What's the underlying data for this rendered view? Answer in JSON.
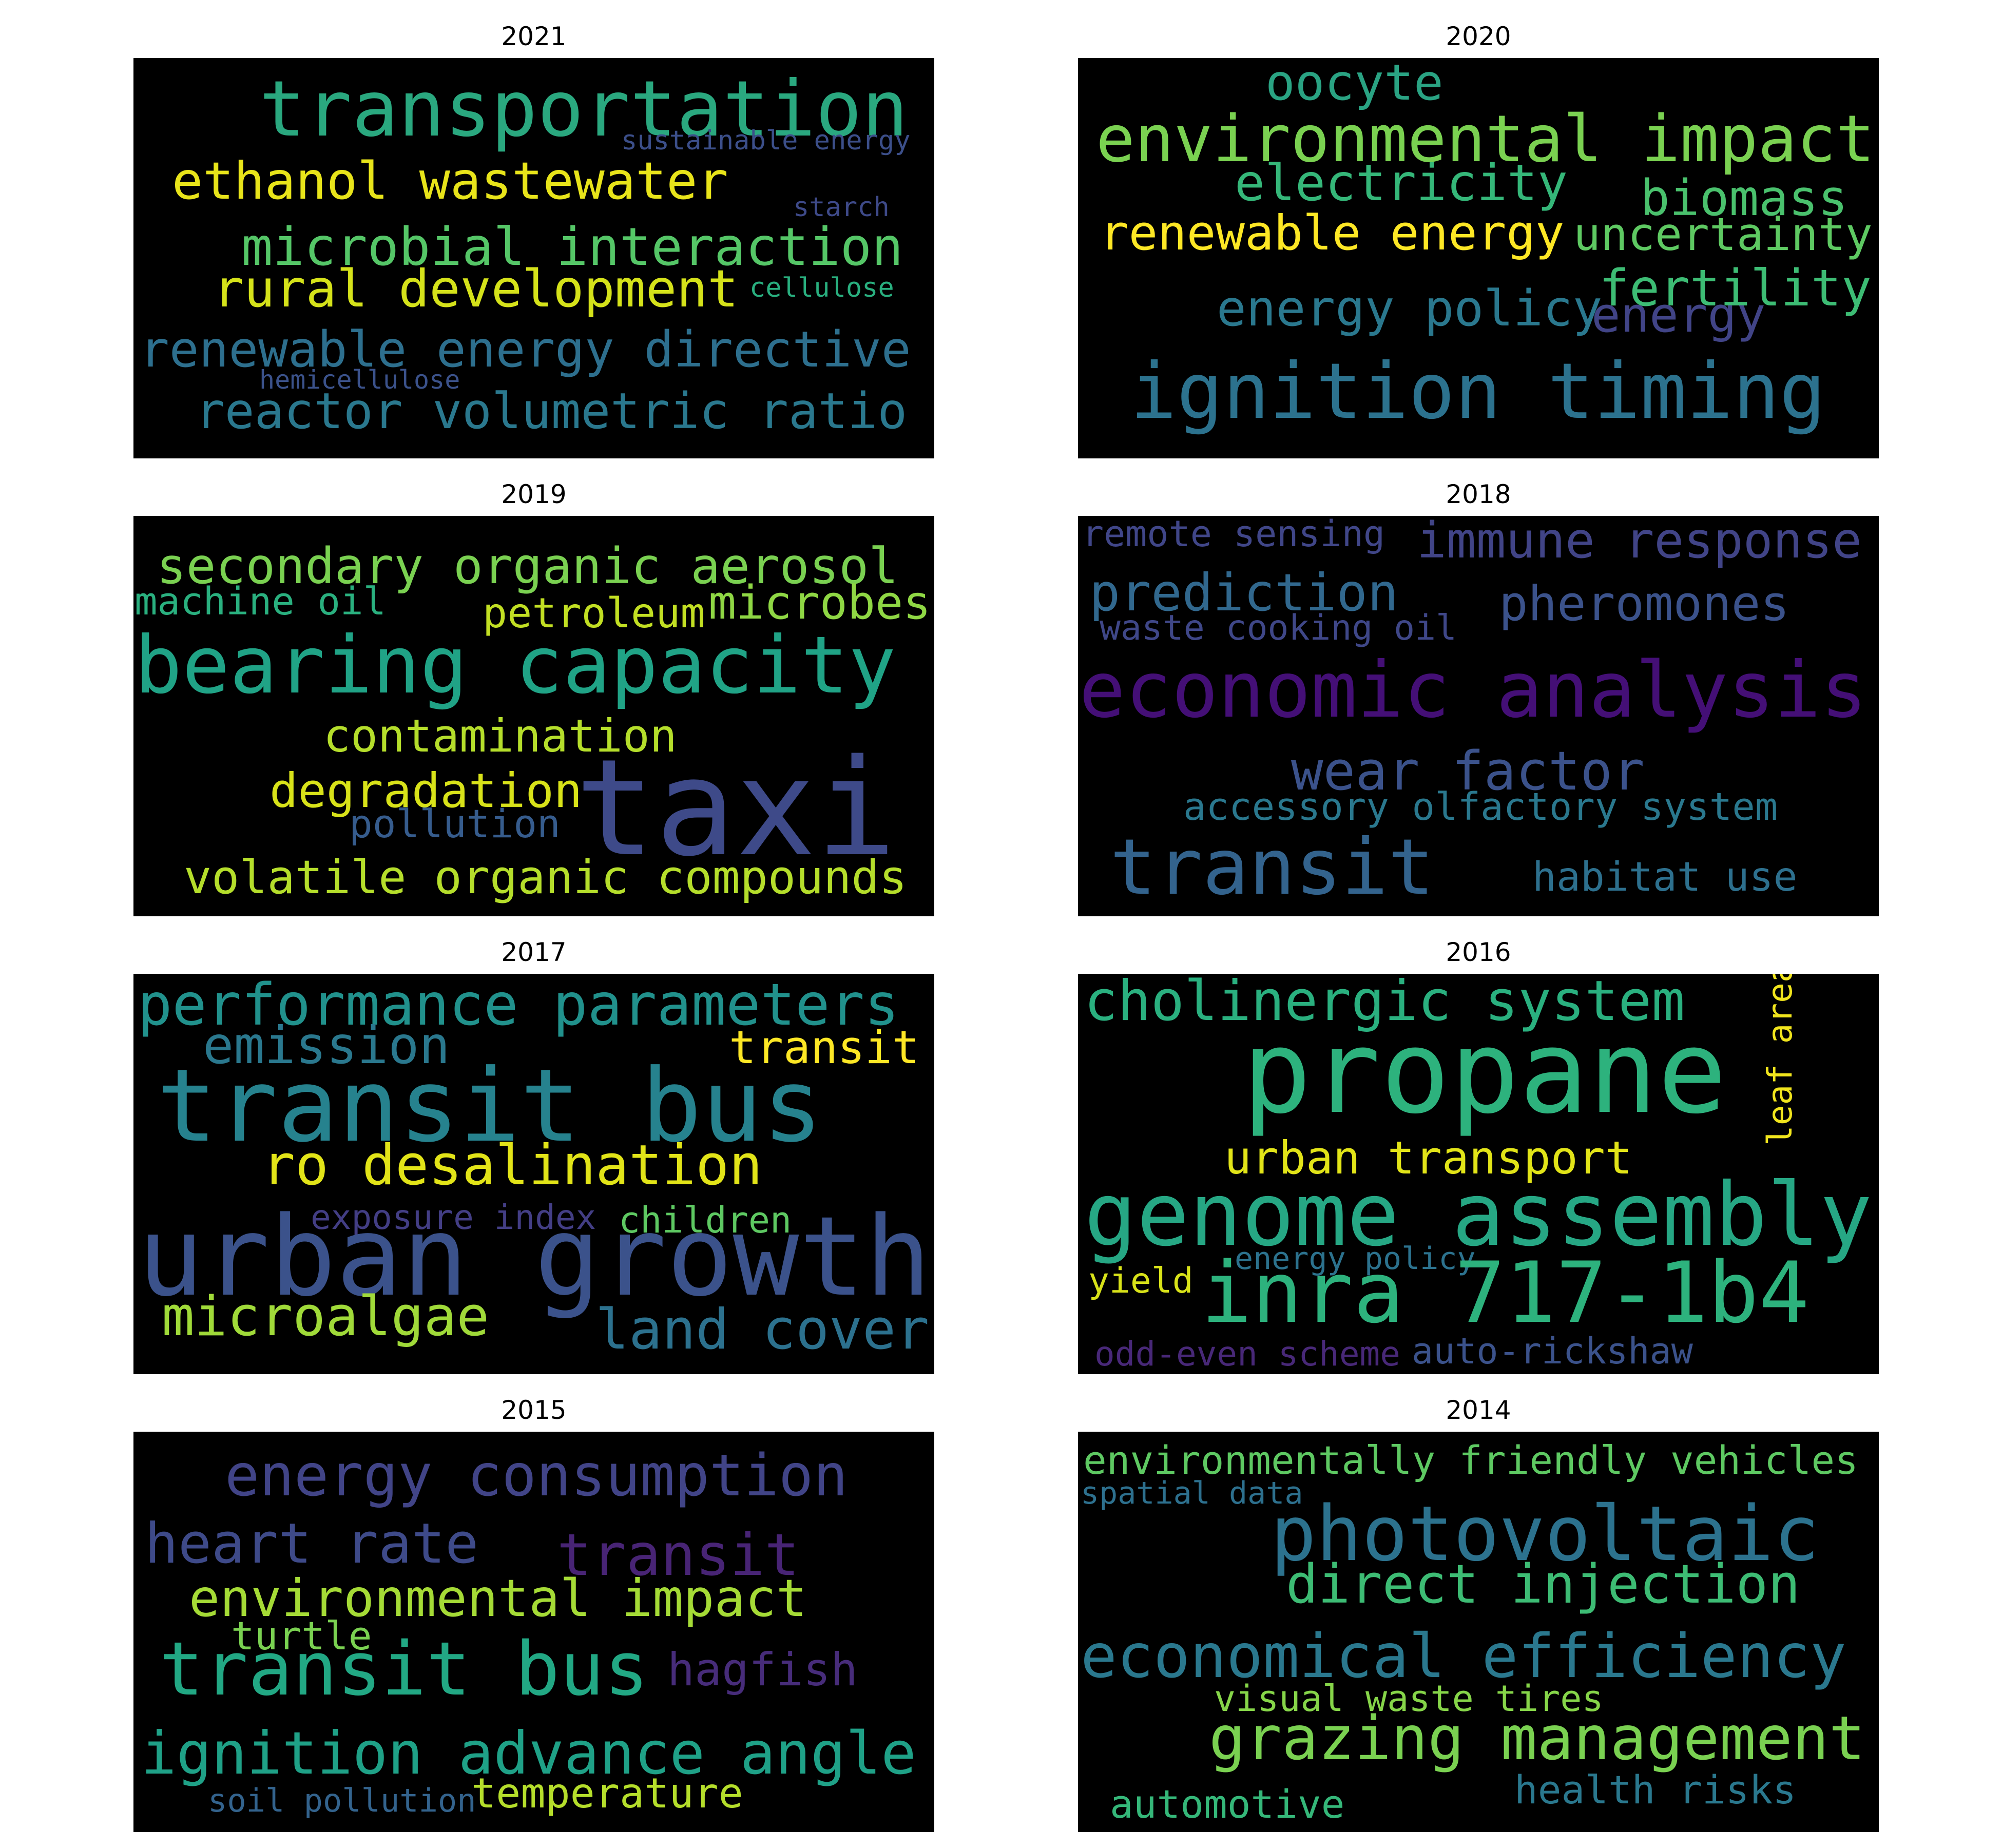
{
  "panels": [
    {
      "year": "2021",
      "words": [
        {
          "text": "transportation",
          "color": "#2aa87f"
        },
        {
          "text": "sustainable energy",
          "color": "#3c4f8a"
        },
        {
          "text": "ethanol wastewater",
          "color": "#e8e41a"
        },
        {
          "text": "starch",
          "color": "#3e4a89"
        },
        {
          "text": "microbial interaction",
          "color": "#55c667"
        },
        {
          "text": "rural development",
          "color": "#d5e21a"
        },
        {
          "text": "cellulose",
          "color": "#29af7f"
        },
        {
          "text": "renewable energy directive",
          "color": "#2d6f8e"
        },
        {
          "text": "hemicellulose",
          "color": "#3b528b"
        },
        {
          "text": "reactor volumetric ratio",
          "color": "#2a788e"
        }
      ]
    },
    {
      "year": "2020",
      "words": [
        {
          "text": "oocyte",
          "color": "#2aa383"
        },
        {
          "text": "environmental impact",
          "color": "#7ad151"
        },
        {
          "text": "electricity",
          "color": "#35b779"
        },
        {
          "text": "biomass",
          "color": "#4ac16d"
        },
        {
          "text": "renewable energy",
          "color": "#fde725"
        },
        {
          "text": "uncertainty",
          "color": "#5ec962"
        },
        {
          "text": "fertility",
          "color": "#3dbc74"
        },
        {
          "text": "energy policy",
          "color": "#2a788e"
        },
        {
          "text": "energy",
          "color": "#414487"
        },
        {
          "text": "ignition timing",
          "color": "#2c728e"
        }
      ]
    },
    {
      "year": "2019",
      "words": [
        {
          "text": "secondary organic aerosol",
          "color": "#7ad151"
        },
        {
          "text": "machine oil",
          "color": "#2ab07f"
        },
        {
          "text": "microbes",
          "color": "#8fd744"
        },
        {
          "text": "petroleum",
          "color": "#c2df23"
        },
        {
          "text": "bearing capacity",
          "color": "#20a386"
        },
        {
          "text": "contamination",
          "color": "#b5de2b"
        },
        {
          "text": "degradation",
          "color": "#d8e219"
        },
        {
          "text": "pollution",
          "color": "#365c8d"
        },
        {
          "text": "taxi",
          "color": "#3e4a89"
        },
        {
          "text": "volatile organic compounds",
          "color": "#b5de2b"
        }
      ]
    },
    {
      "year": "2018",
      "words": [
        {
          "text": "remote sensing",
          "color": "#404688"
        },
        {
          "text": "immune response",
          "color": "#414487"
        },
        {
          "text": "prediction",
          "color": "#31688e"
        },
        {
          "text": "pheromones",
          "color": "#3b528b"
        },
        {
          "text": "waste cooking oil",
          "color": "#3f4788"
        },
        {
          "text": "economic analysis",
          "color": "#440f76"
        },
        {
          "text": "wear factor",
          "color": "#3b528b"
        },
        {
          "text": "accessory olfactory system",
          "color": "#2a788e"
        },
        {
          "text": "transit",
          "color": "#33638d"
        },
        {
          "text": "habitat use",
          "color": "#2d708e"
        }
      ]
    },
    {
      "year": "2017",
      "words": [
        {
          "text": "performance parameters",
          "color": "#21918c"
        },
        {
          "text": "emission",
          "color": "#2a788e"
        },
        {
          "text": "transit",
          "color": "#fde725"
        },
        {
          "text": "transit bus",
          "color": "#26828e"
        },
        {
          "text": "ro desalination",
          "color": "#e2e418"
        },
        {
          "text": "exposure index",
          "color": "#433e85"
        },
        {
          "text": "children",
          "color": "#5ec962"
        },
        {
          "text": "urban growth",
          "color": "#3b528b"
        },
        {
          "text": "microalgae",
          "color": "#a0da39"
        },
        {
          "text": "land cover",
          "color": "#2c718e"
        }
      ]
    },
    {
      "year": "2016",
      "words": [
        {
          "text": "cholinergic system",
          "color": "#2ab07f"
        },
        {
          "text": "propane",
          "color": "#2db27d"
        },
        {
          "text": "leaf area",
          "color": "#f1e51d"
        },
        {
          "text": "urban transport",
          "color": "#e2e418"
        },
        {
          "text": "genome assembly",
          "color": "#26a784"
        },
        {
          "text": "energy policy",
          "color": "#2c728e"
        },
        {
          "text": "yield",
          "color": "#d8e219"
        },
        {
          "text": "inra 717-1b4",
          "color": "#2db27d"
        },
        {
          "text": "odd-even scheme",
          "color": "#482878"
        },
        {
          "text": "auto-rickshaw",
          "color": "#3b528b"
        }
      ]
    },
    {
      "year": "2015",
      "words": [
        {
          "text": "energy consumption",
          "color": "#414487"
        },
        {
          "text": "heart rate",
          "color": "#3e4a89"
        },
        {
          "text": "transit",
          "color": "#482475"
        },
        {
          "text": "environmental impact",
          "color": "#a5db36"
        },
        {
          "text": "turtle",
          "color": "#7ad151"
        },
        {
          "text": "transit bus",
          "color": "#22a884"
        },
        {
          "text": "hagfish",
          "color": "#472c7a"
        },
        {
          "text": "ignition advance angle",
          "color": "#1fa187"
        },
        {
          "text": "soil pollution",
          "color": "#33638d"
        },
        {
          "text": "temperature",
          "color": "#b5de2b"
        }
      ]
    },
    {
      "year": "2014",
      "words": [
        {
          "text": "environmentally friendly vehicles",
          "color": "#5ec962"
        },
        {
          "text": "spatial data",
          "color": "#2d708e"
        },
        {
          "text": "photovoltaic",
          "color": "#2c728e"
        },
        {
          "text": "direct injection",
          "color": "#3dbc74"
        },
        {
          "text": "economical efficiency",
          "color": "#2a788e"
        },
        {
          "text": "visual waste tires",
          "color": "#86d549"
        },
        {
          "text": "grazing management",
          "color": "#7ad151"
        },
        {
          "text": "automotive",
          "color": "#35b779"
        },
        {
          "text": "health risks",
          "color": "#2a788e"
        }
      ]
    }
  ]
}
